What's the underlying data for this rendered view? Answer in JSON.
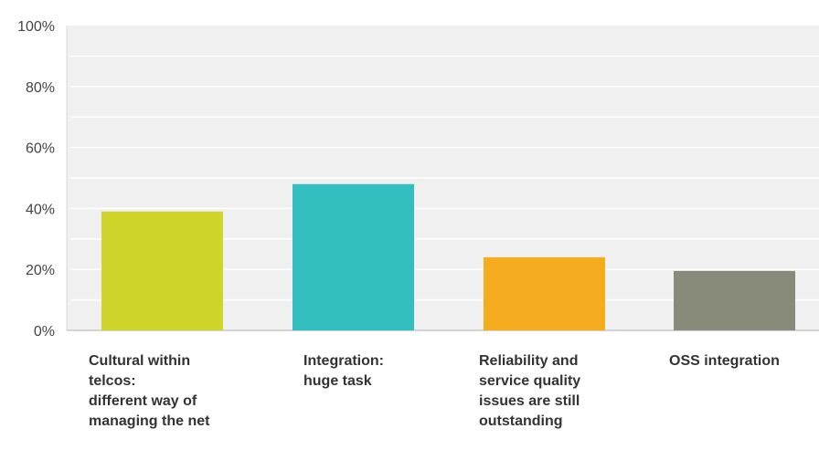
{
  "chart_data": {
    "type": "bar",
    "title": "",
    "xlabel": "",
    "ylabel": "",
    "ylim": [
      0,
      100
    ],
    "y_ticks": [
      {
        "value": 0,
        "label": "0%"
      },
      {
        "value": 20,
        "label": "20%"
      },
      {
        "value": 40,
        "label": "40%"
      },
      {
        "value": 60,
        "label": "60%"
      },
      {
        "value": 80,
        "label": "80%"
      },
      {
        "value": 100,
        "label": "100%"
      }
    ],
    "minor_grid_step": 10,
    "grid": true,
    "legend": "none",
    "categories": [
      [
        "Cultural within",
        "telcos:",
        "different way of",
        "managing the net"
      ],
      [
        "Integration:",
        "huge task"
      ],
      [
        "Reliability and",
        "service quality",
        "issues are still",
        "outstanding"
      ],
      [
        "OSS integration"
      ]
    ],
    "values": [
      39,
      48,
      24,
      19.5
    ],
    "colors": [
      "#cfd42b",
      "#33bfc0",
      "#f5ad1f",
      "#888a7a"
    ],
    "plot_background": "#f0f0f0",
    "grid_color": "#ffffff"
  }
}
